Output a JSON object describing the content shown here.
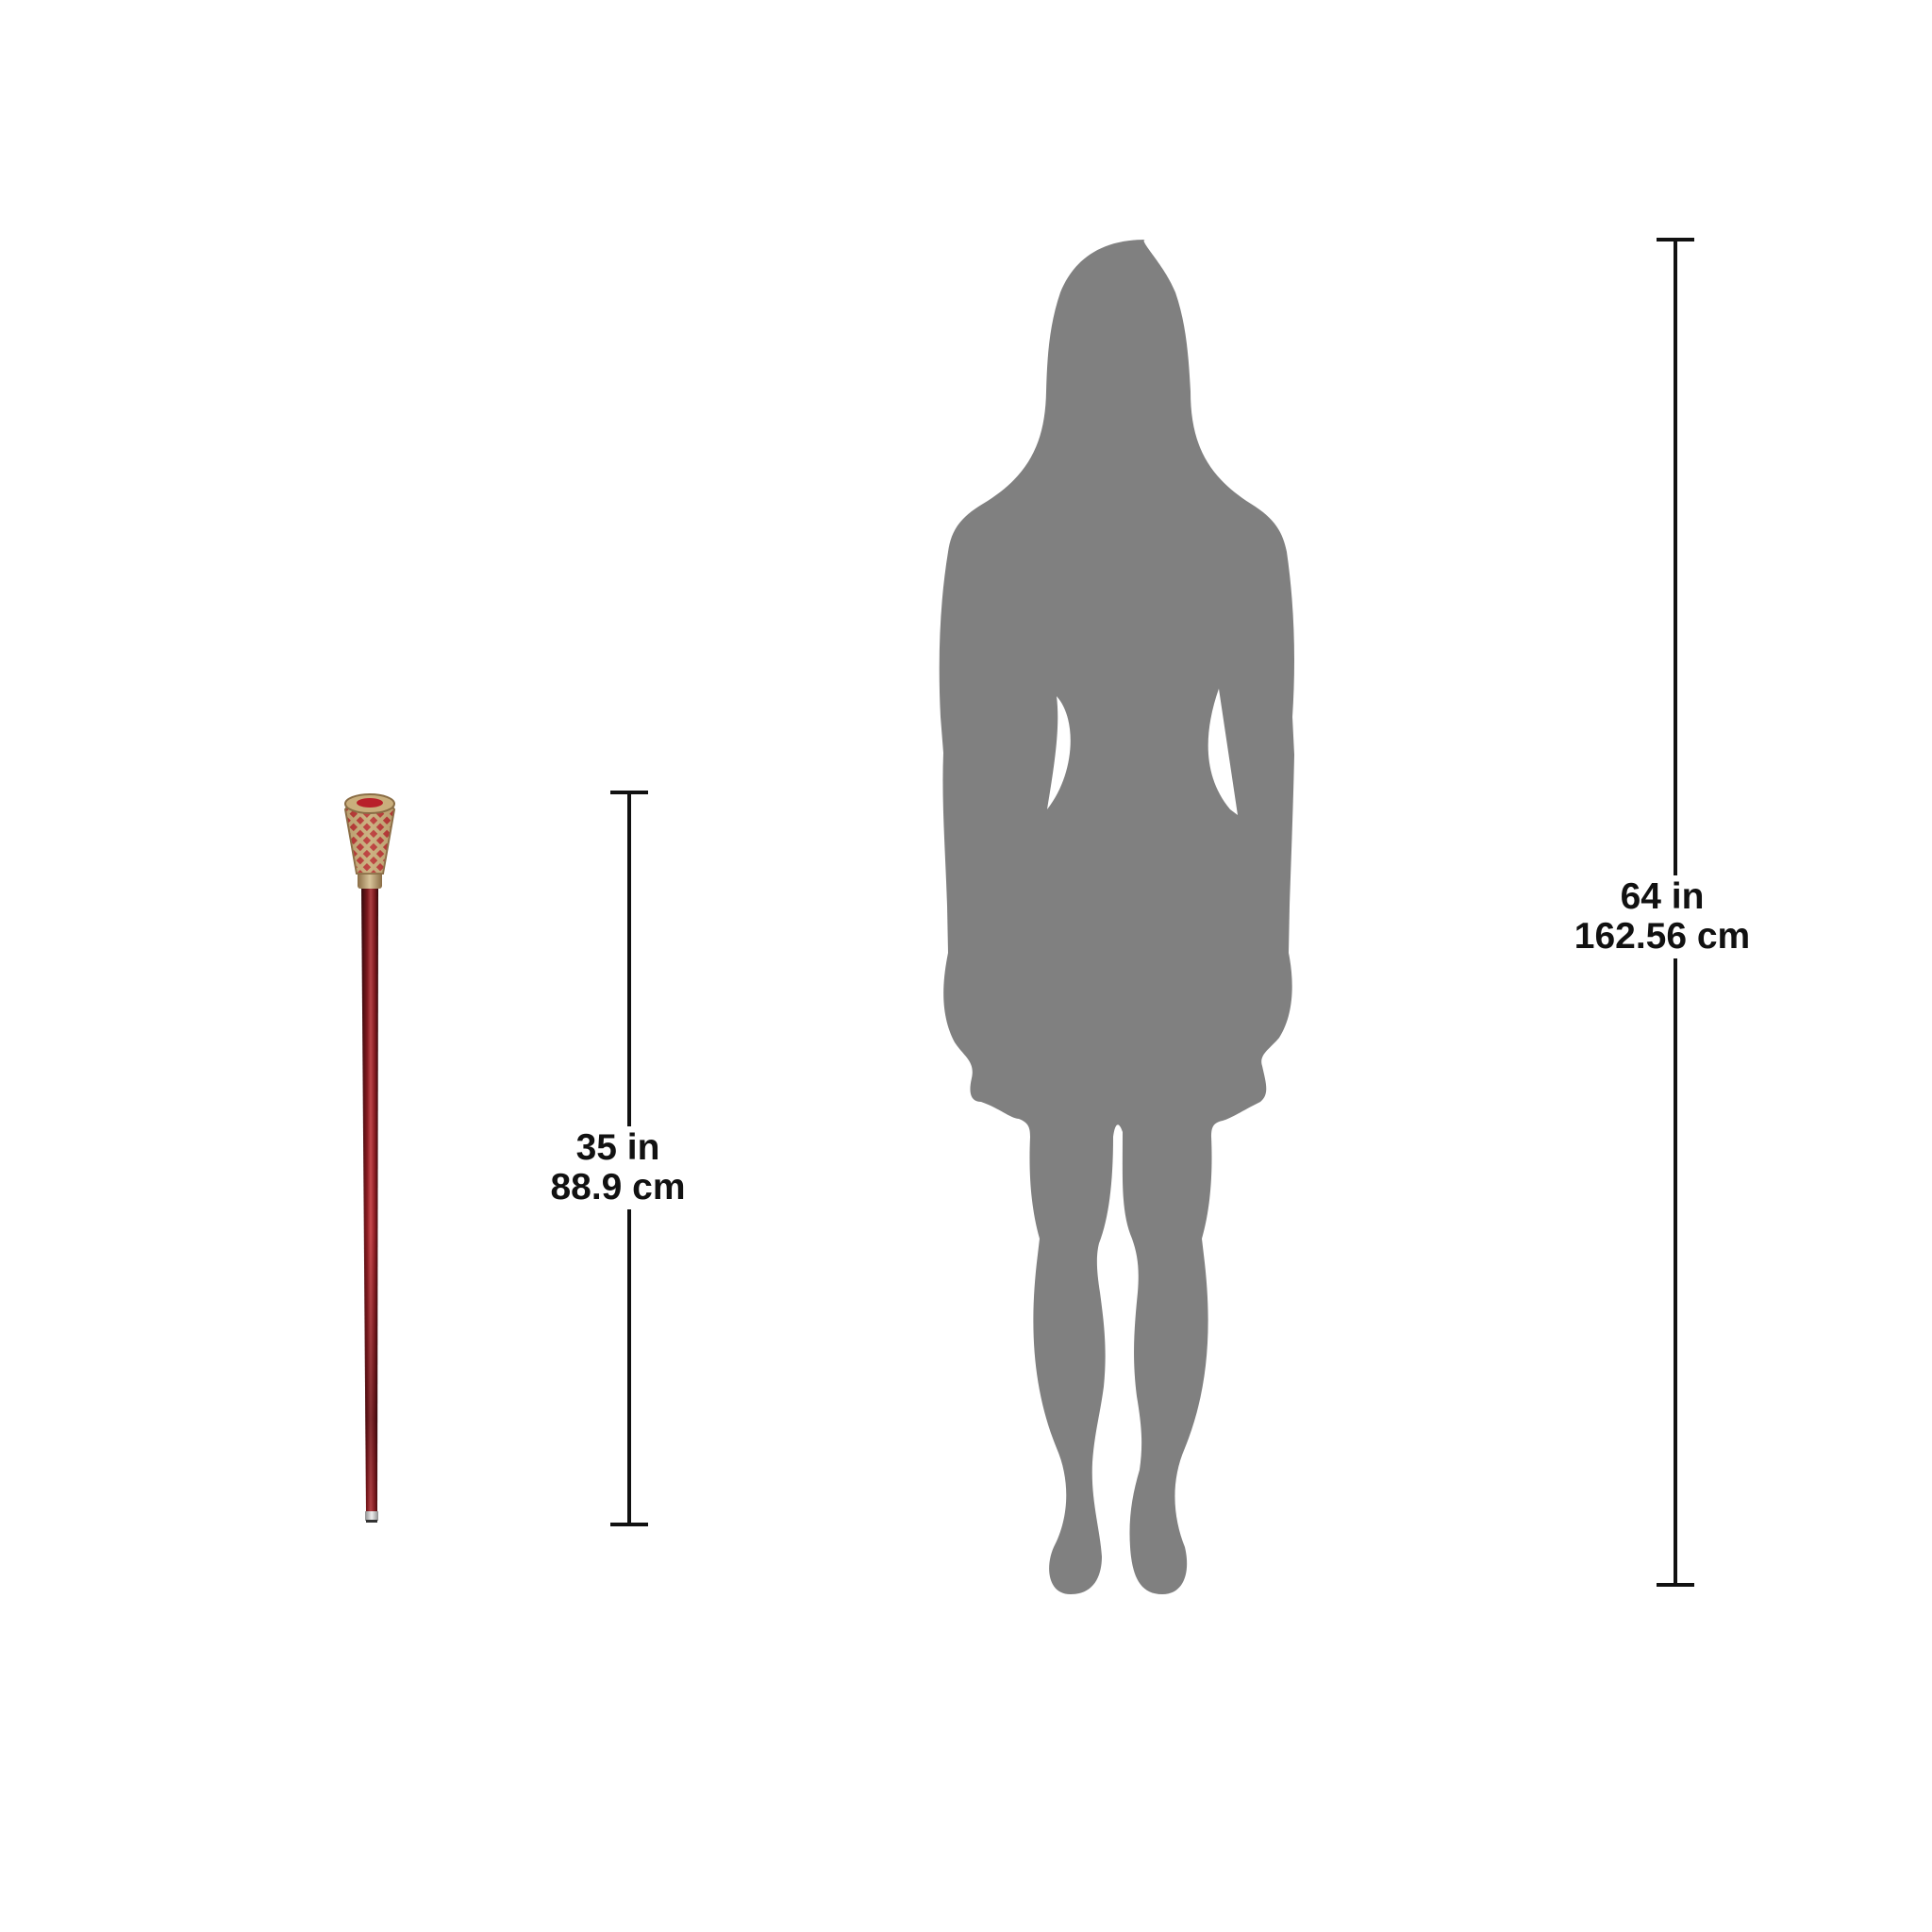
{
  "cane_dimension": {
    "imperial": "35 in",
    "metric": "88.9 cm",
    "height_in": 35
  },
  "person_dimension": {
    "imperial": "64 in",
    "metric": "162.56 cm",
    "height_in": 64
  },
  "colors": {
    "background": "#ffffff",
    "silhouette": "#808080",
    "dimension_line": "#111111",
    "cane_shaft_dark": "#3a0a0c",
    "cane_shaft_mid": "#8e1c22",
    "cane_shaft_light": "#c84a4e",
    "handle_gold": "#c9ae7c",
    "handle_red": "#b8202a",
    "ferrule_silver": "#cfcfcf"
  },
  "icons": {
    "person": "person-silhouette-icon",
    "cane": "walking-cane-icon"
  }
}
